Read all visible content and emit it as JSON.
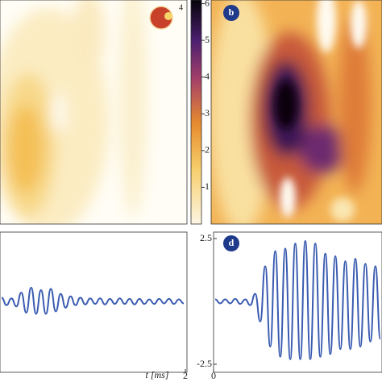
{
  "chart_data": [
    {
      "type": "heatmap",
      "annotation": "4"
    },
    {
      "type": "heatmap",
      "label": "b",
      "colorbar": {
        "ylim": [
          0,
          6.1
        ],
        "yticks": [
          1,
          2,
          3,
          4,
          5,
          6
        ]
      }
    },
    {
      "type": "line",
      "xlabel": "t [ms]",
      "xlim": [
        0,
        2
      ],
      "xticks": [
        2
      ],
      "ylim": [
        -2.5,
        2.5
      ],
      "color": "#3a5bb0",
      "values": [
        0.15,
        -0.15,
        0.12,
        -0.2,
        0.35,
        -0.45,
        0.55,
        -0.5,
        0.45,
        -0.5,
        0.5,
        -0.4,
        0.3,
        -0.25,
        0.2,
        -0.15,
        0.15,
        -0.12,
        0.12,
        -0.1,
        0.12,
        -0.12,
        0.1,
        -0.1,
        0.12,
        -0.1,
        0.1,
        -0.12,
        0.1,
        -0.1,
        0.08,
        -0.1,
        0.1,
        -0.08,
        0.1,
        -0.1,
        0.08,
        -0.08
      ]
    },
    {
      "type": "line",
      "label": "d",
      "xlim": [
        0,
        2
      ],
      "xticks": [
        0
      ],
      "ylim": [
        -2.5,
        2.5
      ],
      "yticks": [
        -2.5,
        2.5
      ],
      "color": "#3a5bb0",
      "values": [
        0.08,
        -0.08,
        0.08,
        -0.08,
        0.1,
        -0.1,
        0.08,
        -0.15,
        0.3,
        -0.8,
        1.4,
        -1.8,
        2.0,
        -2.2,
        2.1,
        -2.3,
        2.3,
        -2.3,
        2.4,
        -2.3,
        2.3,
        -2.2,
        1.9,
        -2.1,
        1.8,
        -1.9,
        1.6,
        -1.9,
        1.7,
        -1.8,
        1.5,
        -1.6,
        1.4,
        -1.5
      ]
    }
  ]
}
